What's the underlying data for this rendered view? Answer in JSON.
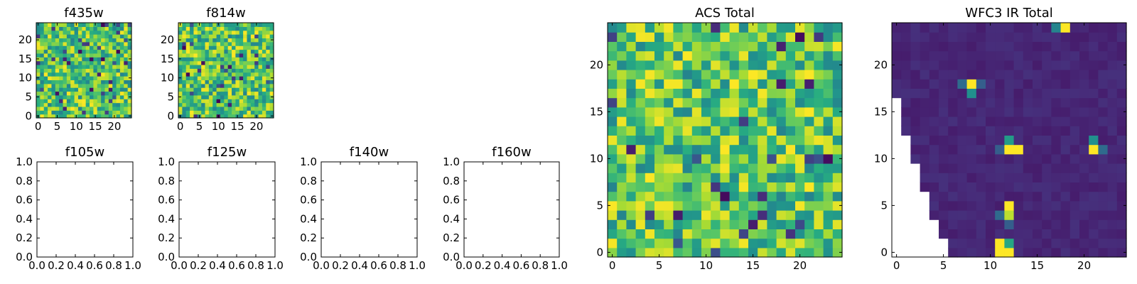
{
  "chart_data": [
    {
      "type": "heatmap",
      "title": "f435w",
      "colormap": "viridis",
      "grid_size": 25,
      "xticks": [
        "0",
        "5",
        "10",
        "15",
        "20"
      ],
      "yticks": [
        "0",
        "5",
        "10",
        "15",
        "20"
      ],
      "xlim": [
        -0.5,
        24.5
      ],
      "ylim": [
        -0.5,
        24.5
      ],
      "values": "random noise 25x25 (values not recoverable)"
    },
    {
      "type": "heatmap",
      "title": "f814w",
      "colormap": "viridis",
      "grid_size": 25,
      "xticks": [
        "0",
        "5",
        "10",
        "15",
        "20"
      ],
      "yticks": [
        "0",
        "5",
        "10",
        "15",
        "20"
      ],
      "xlim": [
        -0.5,
        24.5
      ],
      "ylim": [
        -0.5,
        24.5
      ],
      "values": "random noise 25x25 (values not recoverable)"
    },
    {
      "type": "heatmap",
      "title": "f105w",
      "empty": true,
      "xticks": [
        "0.0",
        "0.2",
        "0.4",
        "0.6",
        "0.8",
        "1.0"
      ],
      "yticks": [
        "0.0",
        "0.2",
        "0.4",
        "0.6",
        "0.8",
        "1.0"
      ],
      "xlim": [
        0,
        1
      ],
      "ylim": [
        0,
        1
      ]
    },
    {
      "type": "heatmap",
      "title": "f125w",
      "empty": true,
      "xticks": [
        "0.0",
        "0.2",
        "0.4",
        "0.6",
        "0.8",
        "1.0"
      ],
      "yticks": [
        "0.0",
        "0.2",
        "0.4",
        "0.6",
        "0.8",
        "1.0"
      ],
      "xlim": [
        0,
        1
      ],
      "ylim": [
        0,
        1
      ]
    },
    {
      "type": "heatmap",
      "title": "f140w",
      "empty": true,
      "xticks": [
        "0.0",
        "0.2",
        "0.4",
        "0.6",
        "0.8",
        "1.0"
      ],
      "yticks": [
        "0.0",
        "0.2",
        "0.4",
        "0.6",
        "0.8",
        "1.0"
      ],
      "xlim": [
        0,
        1
      ],
      "ylim": [
        0,
        1
      ]
    },
    {
      "type": "heatmap",
      "title": "f160w",
      "empty": true,
      "xticks": [
        "0.0",
        "0.2",
        "0.4",
        "0.6",
        "0.8",
        "1.0"
      ],
      "yticks": [
        "0.0",
        "0.2",
        "0.4",
        "0.6",
        "0.8",
        "1.0"
      ],
      "xlim": [
        0,
        1
      ],
      "ylim": [
        0,
        1
      ]
    },
    {
      "type": "heatmap",
      "title": "ACS Total",
      "colormap": "viridis",
      "grid_size": 25,
      "xticks": [
        "0",
        "5",
        "10",
        "15",
        "20"
      ],
      "yticks": [
        "0",
        "5",
        "10",
        "15",
        "20"
      ],
      "xlim": [
        -0.5,
        24.5
      ],
      "ylim": [
        -0.5,
        24.5
      ],
      "values": "random noise 25x25 (values not recoverable)"
    },
    {
      "type": "heatmap",
      "title": "WFC3 IR Total",
      "colormap": "viridis",
      "grid_size": 25,
      "xticks": [
        "0",
        "5",
        "10",
        "15",
        "20"
      ],
      "yticks": [
        "0",
        "5",
        "10",
        "15",
        "20"
      ],
      "xlim": [
        -0.5,
        24.5
      ],
      "ylim": [
        -0.5,
        24.5
      ],
      "background_value": 0.08,
      "masked_left_edge_by_row": {
        "0": 5.5,
        "1": 5.5,
        "2": 4.5,
        "3": 4.5,
        "4": 3.5,
        "5": 3.5,
        "6": 3.5,
        "7": 2.5,
        "8": 2.5,
        "9": 2.5,
        "10": 1.5,
        "11": 1.5,
        "12": 1.5,
        "13": 0.5,
        "14": 0.5,
        "15": 0.5,
        "16": 0.5
      },
      "bright_pixels": [
        {
          "x": 11,
          "y": 0,
          "value": 1.0
        },
        {
          "x": 12,
          "y": 0,
          "value": 1.0
        },
        {
          "x": 11,
          "y": 1,
          "value": 1.0
        },
        {
          "x": 12,
          "y": 1,
          "value": 0.6
        },
        {
          "x": 11,
          "y": 4,
          "value": 0.35
        },
        {
          "x": 12,
          "y": 4,
          "value": 0.9
        },
        {
          "x": 12,
          "y": 5,
          "value": 1.0
        },
        {
          "x": 12,
          "y": 3,
          "value": 0.3
        },
        {
          "x": 12,
          "y": 11,
          "value": 1.0
        },
        {
          "x": 13,
          "y": 11,
          "value": 1.0
        },
        {
          "x": 12,
          "y": 12,
          "value": 0.55
        },
        {
          "x": 11,
          "y": 11,
          "value": 0.3
        },
        {
          "x": 21,
          "y": 11,
          "value": 1.0
        },
        {
          "x": 21,
          "y": 12,
          "value": 0.5
        },
        {
          "x": 22,
          "y": 11,
          "value": 0.35
        },
        {
          "x": 8,
          "y": 18,
          "value": 1.0
        },
        {
          "x": 8,
          "y": 17,
          "value": 0.5
        },
        {
          "x": 7,
          "y": 18,
          "value": 0.35
        },
        {
          "x": 9,
          "y": 18,
          "value": 0.3
        },
        {
          "x": 18,
          "y": 24,
          "value": 1.0
        },
        {
          "x": 17,
          "y": 24,
          "value": 0.45
        }
      ],
      "values": "mostly near-background; see bright_pixels"
    }
  ]
}
